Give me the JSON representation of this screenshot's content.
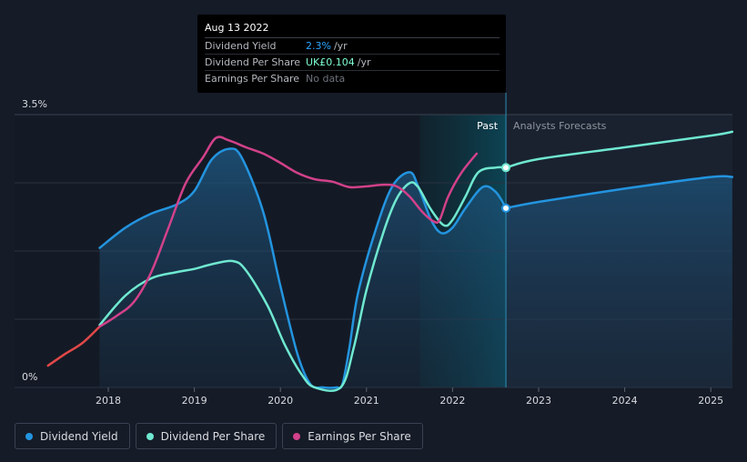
{
  "tooltip": {
    "date": "Aug 13 2022",
    "rows": [
      {
        "label": "Dividend Yield",
        "value": "2.3%",
        "unit": "/yr",
        "color": "#2ba6ff"
      },
      {
        "label": "Dividend Per Share",
        "value": "UK£0.104",
        "unit": "/yr",
        "color": "#7fffd4"
      },
      {
        "label": "Earnings Per Share",
        "value": "No data",
        "unit": "",
        "color": "#6d727b"
      }
    ]
  },
  "legend": [
    {
      "label": "Dividend Yield",
      "color": "#2394df"
    },
    {
      "label": "Dividend Per Share",
      "color": "#6fe8d0"
    },
    {
      "label": "Earnings Per Share",
      "color": "#d2418a"
    }
  ],
  "chart_data": {
    "type": "line",
    "y_axis": {
      "min": 0,
      "max": 3.5,
      "unit": "%",
      "tick_labels": [
        "0%",
        "3.5%"
      ]
    },
    "x_axis": {
      "min": 2017.3,
      "max": 2025.25,
      "tick_labels": [
        "2018",
        "2019",
        "2020",
        "2021",
        "2022",
        "2023",
        "2024",
        "2025"
      ]
    },
    "past_label": "Past",
    "forecast_label": "Analysts Forecasts",
    "past_cutoff": 2022.62,
    "shade_start": 2021.62,
    "series": [
      {
        "name": "Dividend Yield",
        "color": "#2394df",
        "points": [
          [
            2017.9,
            1.79
          ],
          [
            2018.2,
            2.05
          ],
          [
            2018.5,
            2.23
          ],
          [
            2018.8,
            2.35
          ],
          [
            2019.0,
            2.52
          ],
          [
            2019.2,
            2.92
          ],
          [
            2019.4,
            3.06
          ],
          [
            2019.55,
            2.95
          ],
          [
            2019.8,
            2.25
          ],
          [
            2020.0,
            1.3
          ],
          [
            2020.2,
            0.42
          ],
          [
            2020.35,
            0.04
          ],
          [
            2020.5,
            0.0
          ],
          [
            2020.65,
            0.0
          ],
          [
            2020.72,
            0.04
          ],
          [
            2020.8,
            0.5
          ],
          [
            2020.9,
            1.2
          ],
          [
            2021.1,
            2.0
          ],
          [
            2021.3,
            2.58
          ],
          [
            2021.5,
            2.76
          ],
          [
            2021.6,
            2.58
          ],
          [
            2021.75,
            2.15
          ],
          [
            2021.87,
            1.98
          ],
          [
            2022.0,
            2.05
          ],
          [
            2022.15,
            2.3
          ],
          [
            2022.35,
            2.57
          ],
          [
            2022.5,
            2.51
          ],
          [
            2022.62,
            2.3
          ]
        ],
        "forecast": [
          [
            2022.62,
            2.3
          ],
          [
            2023.0,
            2.38
          ],
          [
            2024.0,
            2.55
          ],
          [
            2025.0,
            2.7
          ],
          [
            2025.25,
            2.7
          ]
        ]
      },
      {
        "name": "Dividend Per Share",
        "color": "#6fe8d0",
        "points": [
          [
            2017.9,
            0.8
          ],
          [
            2018.2,
            1.18
          ],
          [
            2018.5,
            1.4
          ],
          [
            2018.8,
            1.48
          ],
          [
            2019.0,
            1.52
          ],
          [
            2019.2,
            1.58
          ],
          [
            2019.45,
            1.62
          ],
          [
            2019.6,
            1.5
          ],
          [
            2019.85,
            1.05
          ],
          [
            2020.05,
            0.55
          ],
          [
            2020.25,
            0.16
          ],
          [
            2020.4,
            0.0
          ],
          [
            2020.7,
            0.0
          ],
          [
            2020.85,
            0.5
          ],
          [
            2021.0,
            1.25
          ],
          [
            2021.2,
            2.0
          ],
          [
            2021.35,
            2.42
          ],
          [
            2021.5,
            2.62
          ],
          [
            2021.6,
            2.57
          ],
          [
            2021.75,
            2.28
          ],
          [
            2021.9,
            2.08
          ],
          [
            2022.0,
            2.15
          ],
          [
            2022.15,
            2.45
          ],
          [
            2022.3,
            2.76
          ],
          [
            2022.5,
            2.82
          ],
          [
            2022.62,
            2.82
          ]
        ],
        "forecast": [
          [
            2022.62,
            2.82
          ],
          [
            2023.0,
            2.93
          ],
          [
            2024.0,
            3.08
          ],
          [
            2025.0,
            3.23
          ],
          [
            2025.25,
            3.28
          ]
        ]
      },
      {
        "name": "Earnings Per Share",
        "color": "#d2418a",
        "points": [
          [
            2017.9,
            0.78
          ],
          [
            2018.1,
            0.92
          ],
          [
            2018.3,
            1.1
          ],
          [
            2018.5,
            1.48
          ],
          [
            2018.7,
            2.05
          ],
          [
            2018.9,
            2.62
          ],
          [
            2019.1,
            2.95
          ],
          [
            2019.25,
            3.2
          ],
          [
            2019.4,
            3.17
          ],
          [
            2019.6,
            3.08
          ],
          [
            2019.8,
            3.0
          ],
          [
            2020.0,
            2.88
          ],
          [
            2020.2,
            2.75
          ],
          [
            2020.4,
            2.67
          ],
          [
            2020.6,
            2.64
          ],
          [
            2020.8,
            2.57
          ],
          [
            2021.0,
            2.58
          ],
          [
            2021.2,
            2.6
          ],
          [
            2021.35,
            2.58
          ],
          [
            2021.5,
            2.45
          ],
          [
            2021.65,
            2.25
          ],
          [
            2021.78,
            2.13
          ],
          [
            2021.85,
            2.15
          ],
          [
            2021.95,
            2.45
          ],
          [
            2022.1,
            2.75
          ],
          [
            2022.28,
            3.0
          ]
        ],
        "early_color": "#e14848",
        "early": [
          [
            2017.3,
            0.28
          ],
          [
            2017.5,
            0.43
          ],
          [
            2017.7,
            0.57
          ],
          [
            2017.9,
            0.78
          ]
        ]
      }
    ]
  }
}
